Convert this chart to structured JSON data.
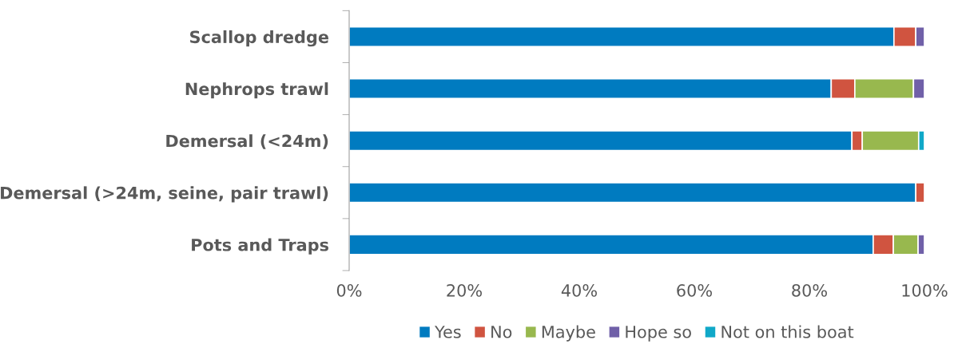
{
  "chart_data": {
    "type": "bar",
    "orientation": "horizontal",
    "stacked": true,
    "categories": [
      "Scallop dredge",
      "Nephrops trawl",
      "Demersal (<24m)",
      "Demersal (>24m, seine, pair trawl)",
      "Pots and Traps"
    ],
    "series": [
      {
        "name": "Yes",
        "color": "#007bc0",
        "values": [
          94.7,
          83.8,
          87.4,
          98.5,
          91.1
        ]
      },
      {
        "name": "No",
        "color": "#d05440",
        "values": [
          3.8,
          4.1,
          1.8,
          1.5,
          3.5
        ]
      },
      {
        "name": "Maybe",
        "color": "#98b84e",
        "values": [
          null,
          10.2,
          9.8,
          null,
          4.3
        ]
      },
      {
        "name": "Hope so",
        "color": "#7060a8",
        "values": [
          1.5,
          1.9,
          null,
          null,
          1.1
        ]
      },
      {
        "name": "Not on this boat",
        "color": "#10a8c8",
        "values": [
          null,
          null,
          1.0,
          null,
          null
        ]
      }
    ],
    "xlim": [
      0,
      100
    ],
    "xticks": [
      {
        "value": 0,
        "label": "0%"
      },
      {
        "value": 20,
        "label": "20%"
      },
      {
        "value": 40,
        "label": "40%"
      },
      {
        "value": 60,
        "label": "60%"
      },
      {
        "value": 80,
        "label": "80%"
      },
      {
        "value": 100,
        "label": "100%"
      }
    ],
    "grid": false,
    "legend": "bottom"
  }
}
